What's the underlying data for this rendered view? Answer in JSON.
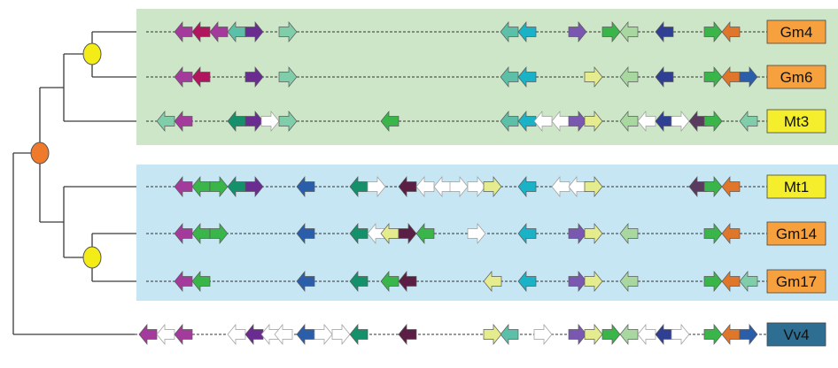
{
  "colors": {
    "group1_bg": "#cde6c8",
    "group2_bg": "#c7e6f4",
    "node_root": "#f07a2c",
    "node_sub": "#f3ec17",
    "label_orange": "#f6a13e",
    "label_yellow": "#f5ee2c",
    "label_blue": "#2e6e93"
  },
  "clusters": [
    {
      "label": "Gm4",
      "label_color": "orange"
    },
    {
      "label": "Gm6",
      "label_color": "orange"
    },
    {
      "label": "Mt3",
      "label_color": "yellow"
    },
    {
      "label": "Mt1",
      "label_color": "yellow"
    },
    {
      "label": "Gm14",
      "label_color": "orange"
    },
    {
      "label": "Gm17",
      "label_color": "orange"
    },
    {
      "label": "Vv4",
      "label_color": "blue"
    }
  ],
  "gene_colors": {
    "magenta": "#a33a9c",
    "crimson": "#b0155e",
    "purple": "#6a2c91",
    "teal": "#5cc0a8",
    "mint": "#7fcda9",
    "cyan": "#19b2c7",
    "violet": "#7a57b0",
    "green": "#39b54a",
    "lightgreen": "#a8d8a0",
    "navy": "#2e3f94",
    "orange": "#e0762a",
    "blue": "#2a5eab",
    "paleyellow": "#e4ec8e",
    "darkgreen": "#14906a",
    "maroon": "#5b1e44",
    "plum": "#5a3a5e",
    "white": "#ffffff"
  }
}
